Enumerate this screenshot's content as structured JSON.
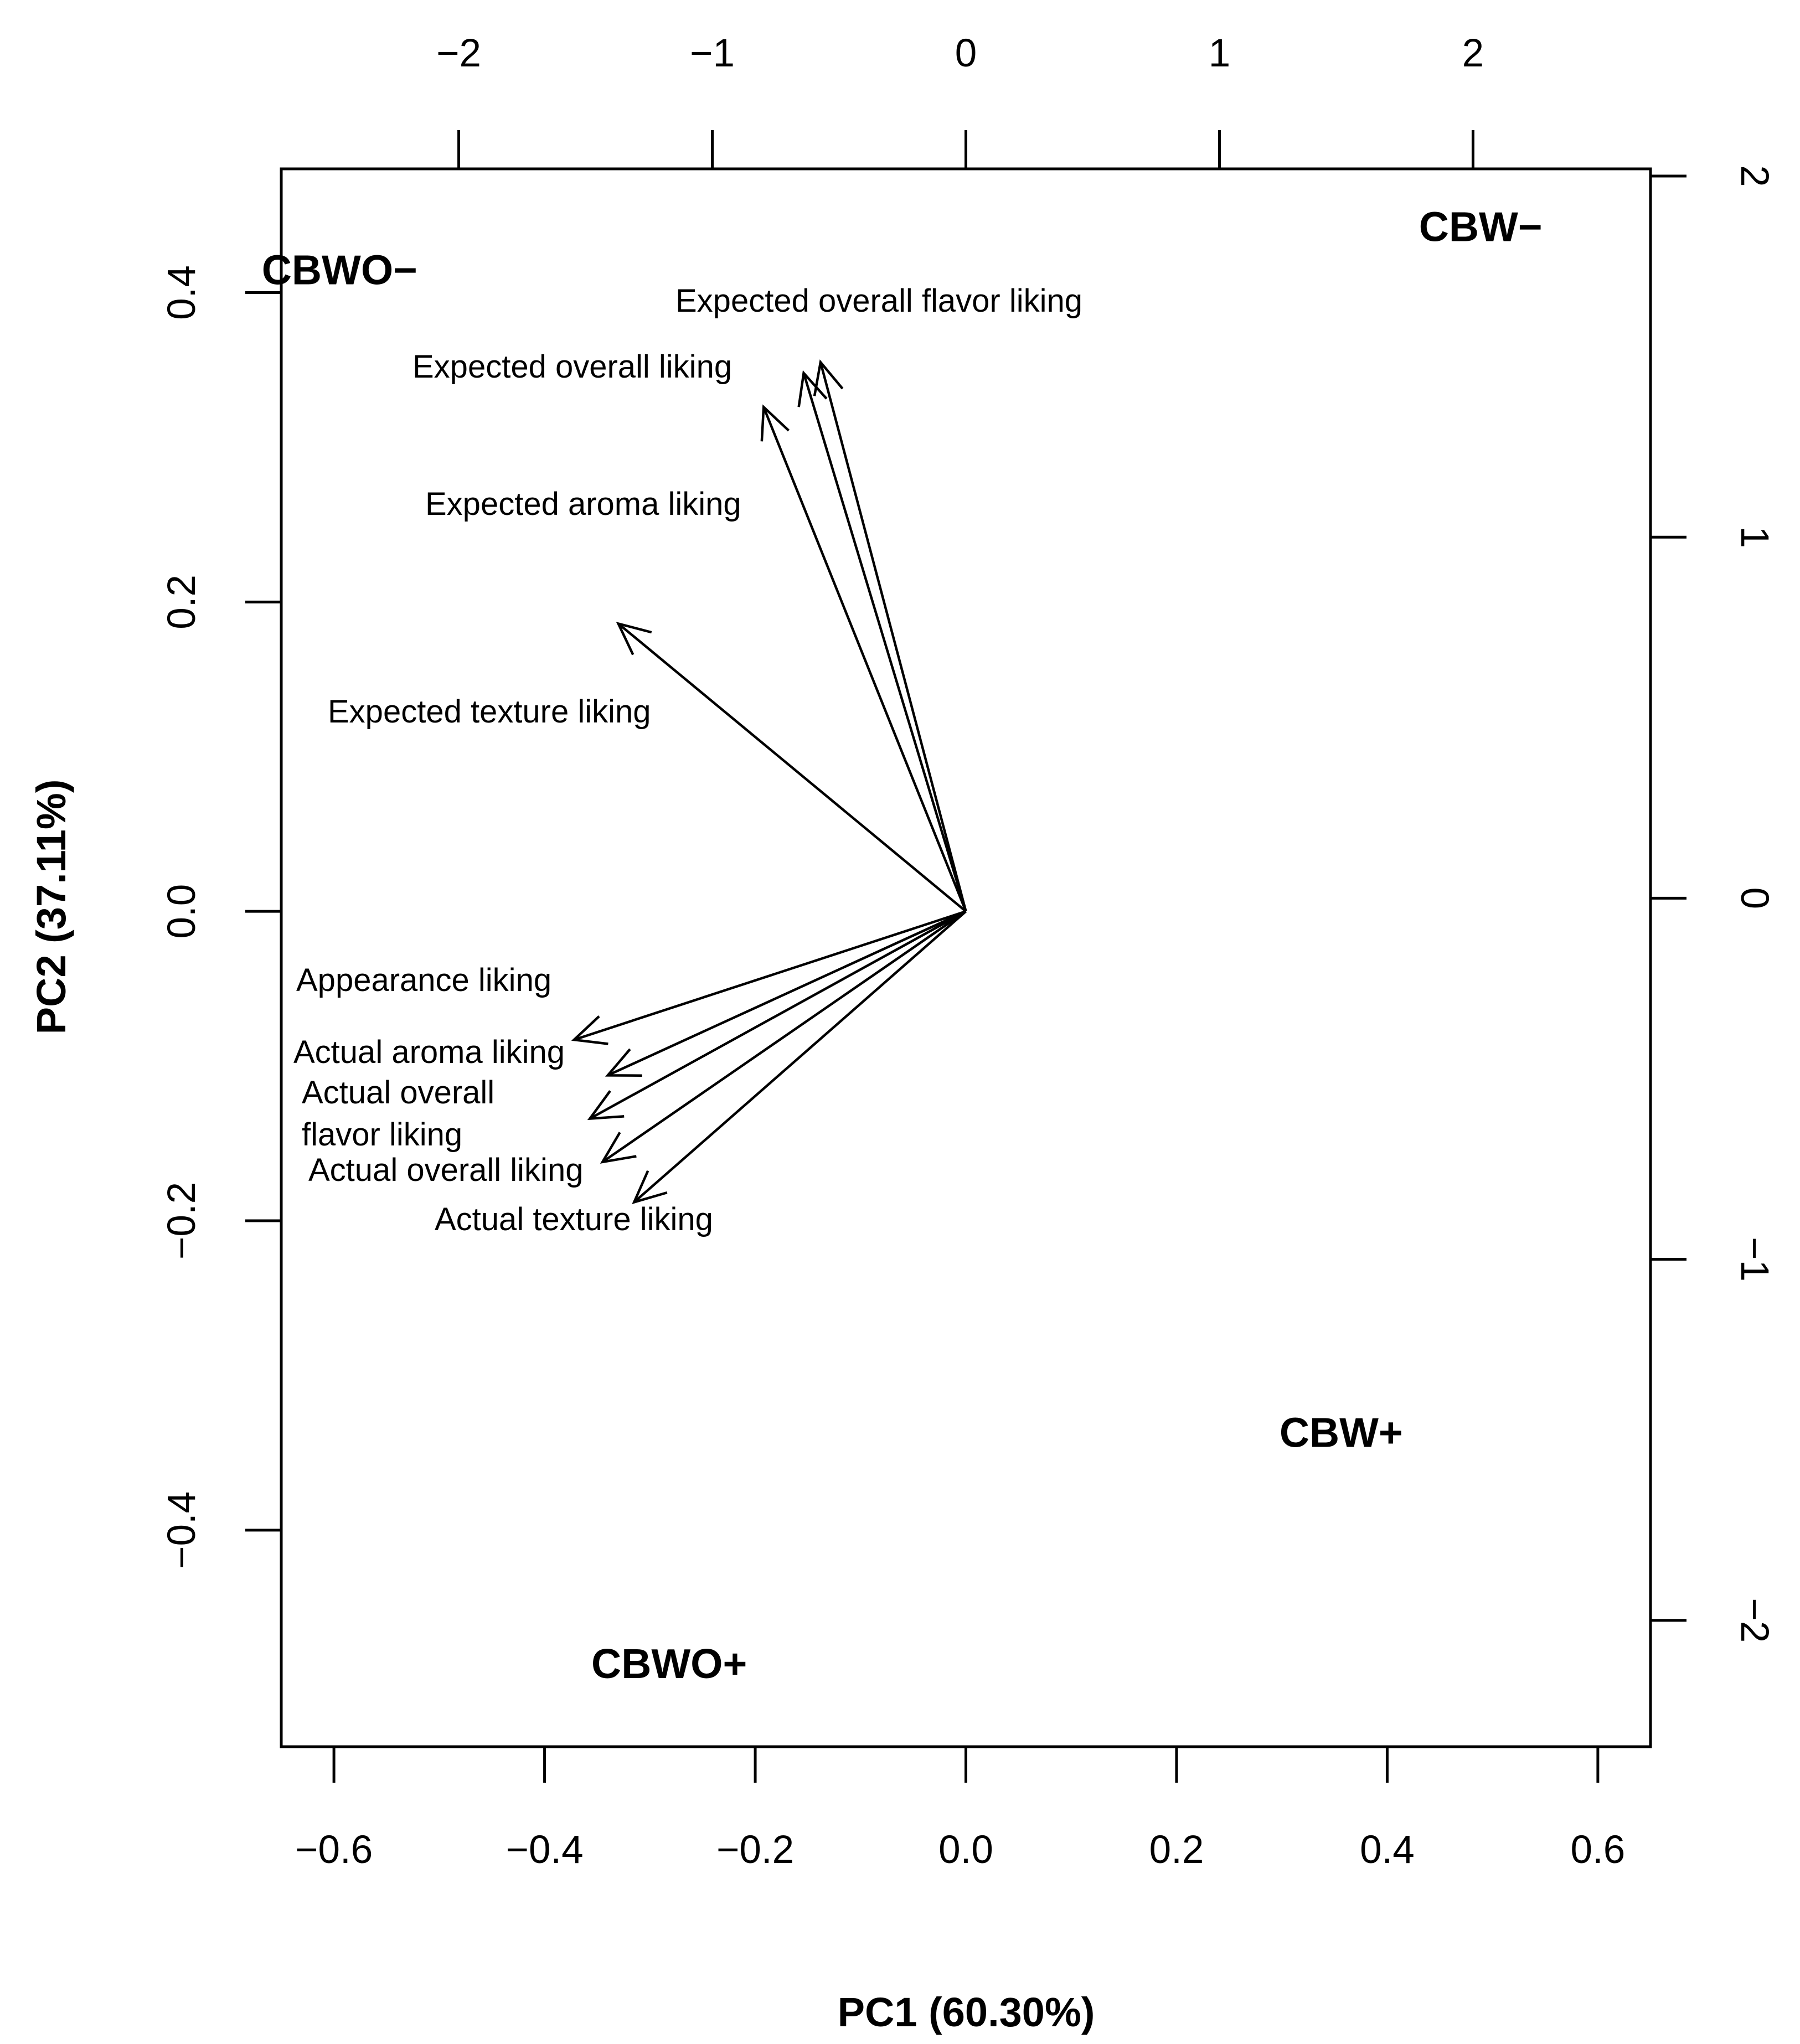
{
  "chart_data": {
    "type": "biplot",
    "xlabel": "PC1 (60.30%)",
    "ylabel": "PC2 (37.11%)",
    "xlim": [
      -0.65,
      0.65
    ],
    "ylim": [
      -0.54,
      0.48
    ],
    "x_ticks": [
      "−0.6",
      "−0.4",
      "−0.2",
      "0.0",
      "0.2",
      "0.4",
      "0.6"
    ],
    "x_tick_values": [
      -0.6,
      -0.4,
      -0.2,
      0.0,
      0.2,
      0.4,
      0.6
    ],
    "y_ticks": [
      "−0.4",
      "−0.2",
      "0.0",
      "0.2",
      "0.4"
    ],
    "y_tick_values": [
      -0.4,
      -0.2,
      0.0,
      0.2,
      0.4
    ],
    "top_axis": {
      "ticks": [
        "−2",
        "−1",
        "0",
        "1",
        "2"
      ],
      "tick_values": [
        -2,
        -1,
        0,
        1,
        2
      ],
      "xlim": [
        -2.7,
        2.7
      ]
    },
    "right_axis": {
      "ticks": [
        "2",
        "1",
        "0",
        "−1",
        "−2"
      ],
      "tick_values": [
        2,
        1,
        0,
        -1,
        -2
      ],
      "ylim": [
        -2.35,
        2.02
      ]
    },
    "loadings": [
      {
        "name": "Expected overall flavor liking",
        "label_lines": [
          "Expected overall flavor liking"
        ],
        "x": -0.138,
        "y": 0.355
      },
      {
        "name": "Expected overall liking",
        "label_lines": [
          "Expected overall liking"
        ],
        "x": -0.154,
        "y": 0.348
      },
      {
        "name": "Expected aroma liking",
        "label_lines": [
          "Expected aroma liking"
        ],
        "x": -0.192,
        "y": 0.326
      },
      {
        "name": "Expected texture liking",
        "label_lines": [
          "Expected texture liking"
        ],
        "x": -0.33,
        "y": 0.186
      },
      {
        "name": "Appearance liking",
        "label_lines": [
          "Appearance liking"
        ],
        "x": -0.372,
        "y": -0.083
      },
      {
        "name": "Actual aroma liking",
        "label_lines": [
          "Actual aroma liking"
        ],
        "x": -0.34,
        "y": -0.106
      },
      {
        "name": "Actual overall flavor liking",
        "label_lines": [
          "Actual overall",
          "flavor liking"
        ],
        "x": -0.357,
        "y": -0.134
      },
      {
        "name": "Actual overall liking",
        "label_lines": [
          "Actual overall liking"
        ],
        "x": -0.345,
        "y": -0.162
      },
      {
        "name": "Actual texture liking",
        "label_lines": [
          "Actual texture liking"
        ],
        "x": -0.315,
        "y": -0.188
      }
    ],
    "samples": [
      {
        "name": "CBWO−",
        "x": -2.47,
        "y": 1.74
      },
      {
        "name": "CBW−",
        "x": 2.03,
        "y": 1.86
      },
      {
        "name": "CBW+",
        "x": 1.48,
        "y": -1.48
      },
      {
        "name": "CBWO+",
        "x": -1.17,
        "y": -2.12
      }
    ]
  }
}
